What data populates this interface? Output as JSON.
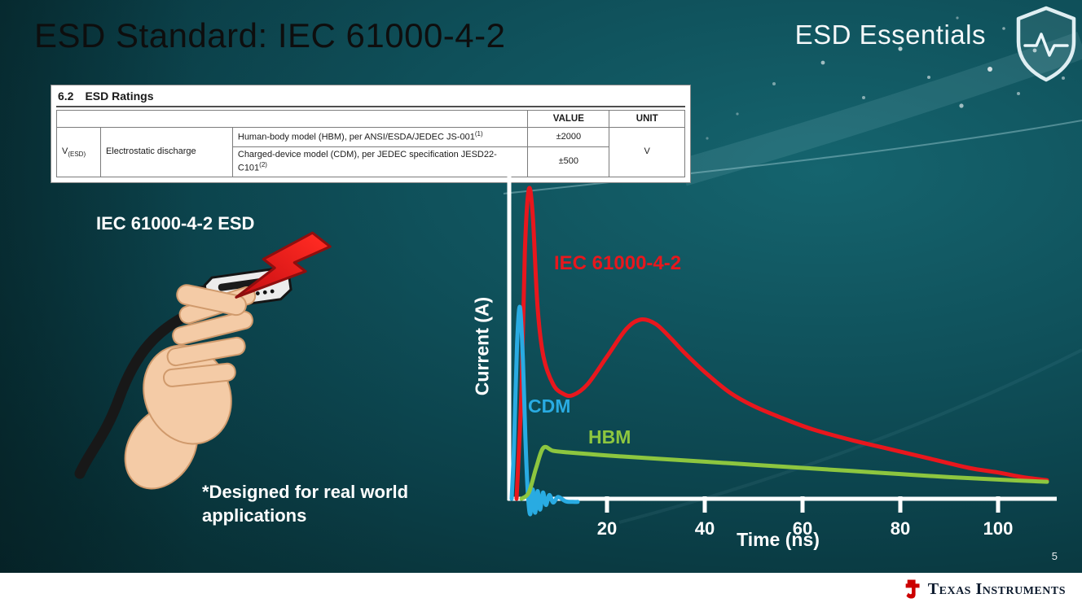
{
  "slide": {
    "title": "ESD Standard: IEC 61000-4-2",
    "series_label": "ESD Essentials",
    "page_number": "5",
    "footer_brand": "Texas Instruments"
  },
  "ratings_table": {
    "section": "6.2",
    "section_title": "ESD Ratings",
    "col_value": "VALUE",
    "col_unit": "UNIT",
    "param_symbol": "V",
    "param_sub": "(ESD)",
    "param_name": "Electrostatic discharge",
    "rows": [
      {
        "desc": "Human-body model (HBM), per ANSI/ESDA/JEDEC JS-001",
        "sup": "(1)",
        "value": "±2000"
      },
      {
        "desc": "Charged-device model (CDM), per JEDEC specification JESD22-C101",
        "sup": "(2)",
        "value": "±500"
      }
    ],
    "unit": "V"
  },
  "illustration": {
    "label": "IEC 61000-4-2 ESD",
    "caption": "*Designed for real world applications"
  },
  "chart_data": {
    "type": "line",
    "title": "",
    "xlabel": "Time (ns)",
    "ylabel": "Current (A)",
    "xlim": [
      0,
      112
    ],
    "ylim": [
      -0.08,
      1.05
    ],
    "x_ticks": [
      20,
      40,
      60,
      80,
      100
    ],
    "grid": false,
    "legend_position": "inline-labels",
    "series": [
      {
        "name": "IEC 61000-4-2",
        "color": "#e8171d",
        "points": [
          [
            1.5,
            0
          ],
          [
            2.5,
            0.35
          ],
          [
            3.2,
            0.8
          ],
          [
            4,
            1.0
          ],
          [
            4.8,
            0.92
          ],
          [
            5.8,
            0.62
          ],
          [
            7,
            0.46
          ],
          [
            9,
            0.37
          ],
          [
            11,
            0.34
          ],
          [
            13,
            0.335
          ],
          [
            16,
            0.37
          ],
          [
            20,
            0.46
          ],
          [
            24,
            0.55
          ],
          [
            27,
            0.58
          ],
          [
            30,
            0.565
          ],
          [
            33,
            0.52
          ],
          [
            36,
            0.47
          ],
          [
            40,
            0.41
          ],
          [
            45,
            0.345
          ],
          [
            50,
            0.3
          ],
          [
            56,
            0.26
          ],
          [
            62,
            0.225
          ],
          [
            70,
            0.19
          ],
          [
            78,
            0.16
          ],
          [
            86,
            0.13
          ],
          [
            94,
            0.1
          ],
          [
            100,
            0.085
          ],
          [
            105,
            0.07
          ],
          [
            110,
            0.06
          ]
        ]
      },
      {
        "name": "CDM",
        "color": "#29abe2",
        "points": [
          [
            0.5,
            0
          ],
          [
            1,
            0.18
          ],
          [
            1.6,
            0.5
          ],
          [
            2.2,
            0.62
          ],
          [
            2.8,
            0.45
          ],
          [
            3.3,
            0.2
          ],
          [
            3.8,
            0.02
          ],
          [
            4.3,
            -0.05
          ],
          [
            4.8,
            0.03
          ],
          [
            5.3,
            -0.045
          ],
          [
            5.8,
            0.025
          ],
          [
            6.3,
            -0.035
          ],
          [
            6.9,
            0.02
          ],
          [
            7.5,
            -0.02
          ],
          [
            8.2,
            0.012
          ],
          [
            9,
            -0.012
          ],
          [
            10,
            0.006
          ],
          [
            11.5,
            -0.008
          ],
          [
            13,
            -0.01
          ],
          [
            14,
            -0.01
          ]
        ]
      },
      {
        "name": "HBM",
        "color": "#8dc63f",
        "points": [
          [
            2.5,
            0
          ],
          [
            4,
            0.02
          ],
          [
            5.5,
            0.1
          ],
          [
            7,
            0.165
          ],
          [
            9,
            0.155
          ],
          [
            12,
            0.15
          ],
          [
            16,
            0.145
          ],
          [
            20,
            0.14
          ],
          [
            30,
            0.13
          ],
          [
            40,
            0.12
          ],
          [
            50,
            0.11
          ],
          [
            60,
            0.1
          ],
          [
            70,
            0.09
          ],
          [
            80,
            0.08
          ],
          [
            90,
            0.07
          ],
          [
            100,
            0.062
          ],
          [
            110,
            0.055
          ]
        ]
      }
    ]
  }
}
